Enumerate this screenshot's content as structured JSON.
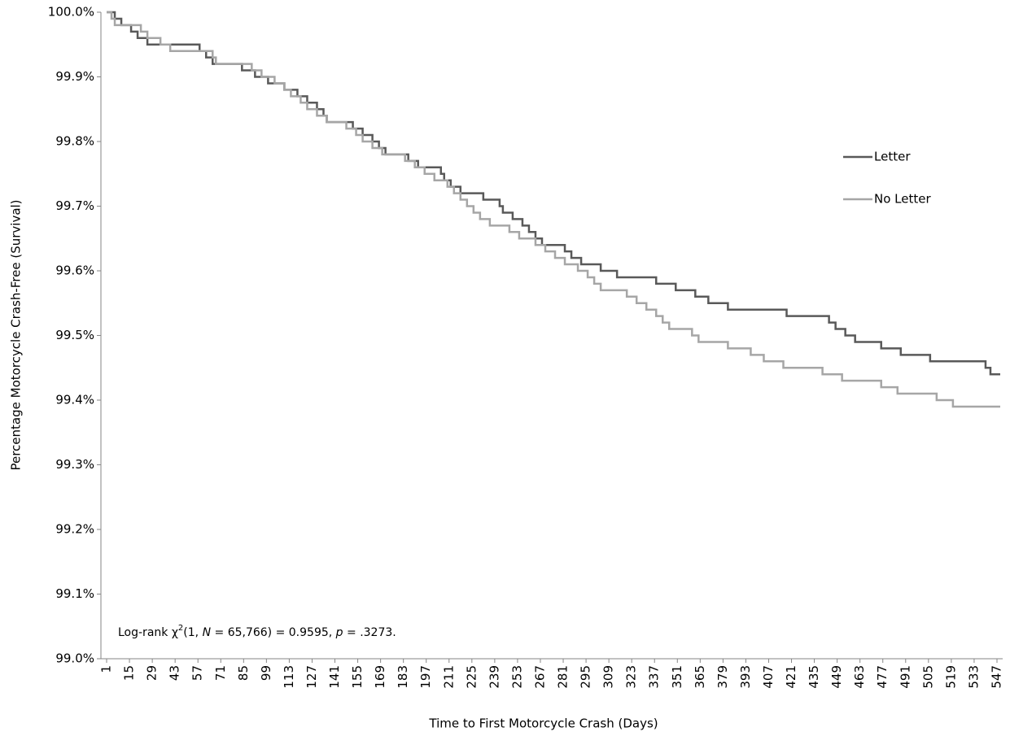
{
  "chart_data": {
    "type": "step-line",
    "x_label": "Time to First Motorcycle Crash (Days)",
    "y_label": "Percentage Motorcycle Crash-Free (Survival)",
    "annotation": [
      "Log-rank χ",
      "2",
      "(1, ",
      "N",
      " = 65,766) = 0.9595, ",
      "p",
      " = .3273."
    ],
    "xlim": [
      -2.5,
      550.5
    ],
    "ylim": [
      99.0,
      100.0
    ],
    "xticks": [
      1,
      15,
      29,
      43,
      57,
      71,
      85,
      99,
      113,
      127,
      141,
      155,
      169,
      183,
      197,
      211,
      225,
      239,
      253,
      267,
      281,
      295,
      309,
      323,
      337,
      351,
      365,
      379,
      393,
      407,
      421,
      435,
      449,
      463,
      477,
      491,
      505,
      519,
      533,
      547
    ],
    "yticks": [
      {
        "value": 99.0,
        "label": "99.0%"
      },
      {
        "value": 99.1,
        "label": "99.1%"
      },
      {
        "value": 99.2,
        "label": "99.2%"
      },
      {
        "value": 99.3,
        "label": "99.3%"
      },
      {
        "value": 99.4,
        "label": "99.4%"
      },
      {
        "value": 99.5,
        "label": "99.5%"
      },
      {
        "value": 99.6,
        "label": "99.6%"
      },
      {
        "value": 99.7,
        "label": "99.7%"
      },
      {
        "value": 99.8,
        "label": "99.8%"
      },
      {
        "value": 99.9,
        "label": "99.9%"
      },
      {
        "value": 100.0,
        "label": "100.0%"
      }
    ],
    "series": [
      {
        "name": "Letter",
        "color": "#595959",
        "x": [
          1,
          6,
          10,
          16,
          20,
          26,
          58,
          62,
          66,
          84,
          92,
          100,
          110,
          118,
          124,
          130,
          134,
          136,
          152,
          158,
          164,
          168,
          172,
          186,
          192,
          206,
          208,
          212,
          218,
          232,
          242,
          244,
          250,
          256,
          260,
          264,
          268,
          282,
          286,
          292,
          304,
          314,
          338,
          350,
          362,
          370,
          382,
          418,
          444,
          448,
          454,
          460,
          476,
          488,
          506,
          540,
          543,
          549
        ],
        "values": [
          100.0,
          99.99,
          99.98,
          99.97,
          99.96,
          99.95,
          99.94,
          99.93,
          99.92,
          99.91,
          99.9,
          99.89,
          99.88,
          99.87,
          99.86,
          99.85,
          99.84,
          99.83,
          99.82,
          99.81,
          99.8,
          99.79,
          99.78,
          99.77,
          99.76,
          99.75,
          99.74,
          99.73,
          99.72,
          99.71,
          99.7,
          99.69,
          99.68,
          99.67,
          99.66,
          99.65,
          99.64,
          99.63,
          99.62,
          99.61,
          99.6,
          99.59,
          99.58,
          99.57,
          99.56,
          99.55,
          99.54,
          99.53,
          99.52,
          99.51,
          99.5,
          99.49,
          99.48,
          99.47,
          99.46,
          99.45,
          99.44,
          99.44
        ]
      },
      {
        "name": "No Letter",
        "color": "#a6a6a6",
        "x": [
          1,
          4,
          6,
          22,
          26,
          34,
          40,
          66,
          68,
          90,
          96,
          104,
          110,
          114,
          120,
          124,
          130,
          136,
          148,
          154,
          158,
          164,
          170,
          184,
          190,
          196,
          202,
          210,
          214,
          218,
          222,
          226,
          230,
          236,
          248,
          254,
          264,
          270,
          276,
          282,
          290,
          296,
          300,
          304,
          320,
          326,
          332,
          338,
          342,
          346,
          360,
          364,
          382,
          396,
          404,
          416,
          440,
          452,
          476,
          486,
          510,
          520,
          549
        ],
        "values": [
          100.0,
          99.99,
          99.98,
          99.97,
          99.96,
          99.95,
          99.94,
          99.93,
          99.92,
          99.91,
          99.9,
          99.89,
          99.88,
          99.87,
          99.86,
          99.85,
          99.84,
          99.83,
          99.82,
          99.81,
          99.8,
          99.79,
          99.78,
          99.77,
          99.76,
          99.75,
          99.74,
          99.73,
          99.72,
          99.71,
          99.7,
          99.69,
          99.68,
          99.67,
          99.66,
          99.65,
          99.64,
          99.63,
          99.62,
          99.61,
          99.6,
          99.59,
          99.58,
          99.57,
          99.56,
          99.55,
          99.54,
          99.53,
          99.52,
          99.51,
          99.5,
          99.49,
          99.48,
          99.47,
          99.46,
          99.45,
          99.44,
          99.43,
          99.42,
          99.41,
          99.4,
          99.39,
          99.39
        ]
      }
    ]
  }
}
